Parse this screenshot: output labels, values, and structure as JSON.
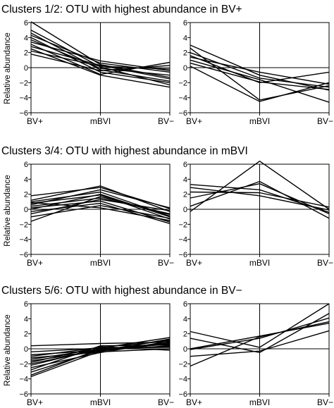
{
  "chart_data": [
    {
      "type": "line",
      "title": "Clusters 1/2: OTU with highest abundance in BV+",
      "ylabel": "Relative abundance",
      "x": [
        "BV+",
        "mBVI",
        "BV−"
      ],
      "ylim": [
        -6,
        6
      ],
      "yticks": [
        6,
        4,
        2,
        0,
        -2,
        -4,
        -6
      ],
      "panels": [
        {
          "name": "Cluster 1",
          "series": [
            {
              "values": [
                6.1,
                0.4,
                -1.3
              ]
            },
            {
              "values": [
                5.0,
                0.1,
                -2.3
              ]
            },
            {
              "values": [
                4.6,
                -0.3,
                -1.8
              ]
            },
            {
              "values": [
                4.3,
                0.6,
                -0.6
              ]
            },
            {
              "values": [
                4.0,
                -0.6,
                -2.0
              ]
            },
            {
              "values": [
                3.7,
                -0.1,
                -1.0
              ]
            },
            {
              "values": [
                3.4,
                0.9,
                -0.4
              ]
            },
            {
              "values": [
                3.1,
                -0.9,
                0.7
              ]
            },
            {
              "values": [
                2.8,
                0.3,
                -1.5
              ]
            },
            {
              "values": [
                2.5,
                -1.0,
                -2.6
              ]
            },
            {
              "values": [
                2.2,
                0.2,
                -0.2
              ]
            },
            {
              "values": [
                1.8,
                -0.4,
                0.3
              ]
            }
          ]
        },
        {
          "name": "Cluster 2",
          "series": [
            {
              "values": [
                3.0,
                -1.0,
                -3.0
              ]
            },
            {
              "values": [
                2.6,
                -4.3,
                -2.4
              ]
            },
            {
              "values": [
                2.0,
                -1.4,
                -2.6
              ]
            },
            {
              "values": [
                1.4,
                -0.6,
                -2.2
              ]
            },
            {
              "values": [
                1.0,
                -1.6,
                -4.6
              ]
            },
            {
              "values": [
                0.6,
                -1.9,
                -2.9
              ]
            },
            {
              "values": [
                0.2,
                -4.5,
                -2.0
              ]
            },
            {
              "values": [
                1.6,
                -2.0,
                -0.6
              ]
            }
          ]
        }
      ]
    },
    {
      "type": "line",
      "title": "Clusters 3/4: OTU with highest abundance in mBVI",
      "ylabel": "Relative abundance",
      "x": [
        "BV+",
        "mBVI",
        "BV−"
      ],
      "ylim": [
        -6,
        6
      ],
      "yticks": [
        6,
        4,
        2,
        0,
        -2,
        -4,
        -6
      ],
      "panels": [
        {
          "name": "Cluster 3",
          "series": [
            {
              "values": [
                1.8,
                2.9,
                0.1
              ]
            },
            {
              "values": [
                1.2,
                3.1,
                -0.3
              ]
            },
            {
              "values": [
                1.0,
                2.3,
                -0.9
              ]
            },
            {
              "values": [
                0.8,
                1.9,
                -1.3
              ]
            },
            {
              "values": [
                0.6,
                2.6,
                0.2
              ]
            },
            {
              "values": [
                0.4,
                1.5,
                -0.6
              ]
            },
            {
              "values": [
                0.2,
                1.1,
                -1.7
              ]
            },
            {
              "values": [
                0.0,
                2.0,
                -1.0
              ]
            },
            {
              "values": [
                -0.3,
                0.8,
                -1.9
              ]
            },
            {
              "values": [
                -0.6,
                1.3,
                -0.2
              ]
            },
            {
              "values": [
                -1.0,
                0.5,
                -1.2
              ]
            },
            {
              "values": [
                -1.6,
                1.7,
                -0.7
              ]
            },
            {
              "values": [
                0.9,
                0.2,
                -1.5
              ]
            }
          ]
        },
        {
          "name": "Cluster 4",
          "series": [
            {
              "values": [
                -0.3,
                6.4,
                0.0
              ]
            },
            {
              "values": [
                0.4,
                3.7,
                -1.2
              ]
            },
            {
              "values": [
                1.5,
                3.4,
                -0.6
              ]
            },
            {
              "values": [
                2.3,
                2.2,
                0.3
              ]
            },
            {
              "values": [
                2.9,
                1.8,
                -0.1
              ]
            },
            {
              "values": [
                3.3,
                2.6,
                -0.4
              ]
            }
          ]
        }
      ]
    },
    {
      "type": "line",
      "title": "Clusters 5/6: OTU with highest abundance in BV−",
      "ylabel": "Relative abundance",
      "x": [
        "BV+",
        "mBVI",
        "BV−"
      ],
      "ylim": [
        -6,
        6
      ],
      "yticks": [
        6,
        4,
        2,
        0,
        -2,
        -4,
        -6
      ],
      "panels": [
        {
          "name": "Cluster 5",
          "series": [
            {
              "values": [
                0.4,
                0.7,
                0.9
              ]
            },
            {
              "values": [
                -0.4,
                0.1,
                1.5
              ]
            },
            {
              "values": [
                -0.8,
                -0.2,
                0.4
              ]
            },
            {
              "values": [
                -1.0,
                0.2,
                1.1
              ]
            },
            {
              "values": [
                -1.2,
                -0.4,
                0.0
              ]
            },
            {
              "values": [
                -1.4,
                0.0,
                0.6
              ]
            },
            {
              "values": [
                -1.6,
                -0.3,
                1.3
              ]
            },
            {
              "values": [
                -1.8,
                0.3,
                -0.2
              ]
            },
            {
              "values": [
                -2.0,
                -0.1,
                0.8
              ]
            },
            {
              "values": [
                -2.2,
                0.1,
                0.2
              ]
            },
            {
              "values": [
                -2.5,
                -0.5,
                1.0
              ]
            },
            {
              "values": [
                -2.8,
                0.4,
                0.5
              ]
            },
            {
              "values": [
                -3.1,
                -0.2,
                1.2
              ]
            },
            {
              "values": [
                -3.5,
                0.0,
                0.3
              ]
            },
            {
              "values": [
                -3.7,
                -0.3,
                0.7
              ]
            }
          ]
        },
        {
          "name": "Cluster 6",
          "series": [
            {
              "values": [
                2.3,
                0.2,
                6.0
              ]
            },
            {
              "values": [
                1.4,
                -0.5,
                4.7
              ]
            },
            {
              "values": [
                0.0,
                1.7,
                3.4
              ]
            },
            {
              "values": [
                -0.1,
                1.4,
                4.1
              ]
            },
            {
              "values": [
                -1.0,
                -0.3,
                2.4
              ]
            },
            {
              "values": [
                -2.3,
                1.6,
                3.6
              ]
            }
          ]
        }
      ]
    }
  ]
}
